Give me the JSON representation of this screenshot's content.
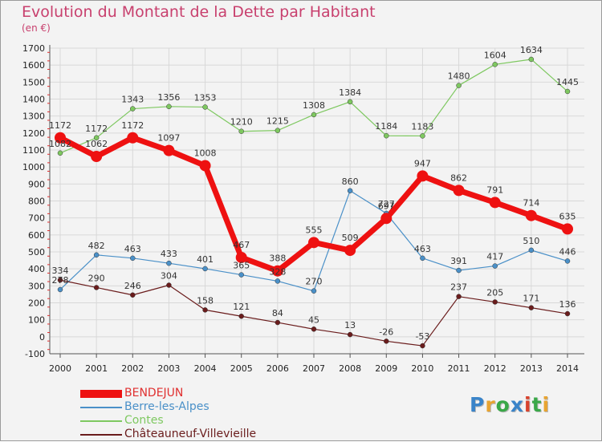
{
  "title": "Evolution du Montant de la Dette par Habitant",
  "subtitle": "(en €)",
  "logo": {
    "text": "Proxiti",
    "letter_colors": [
      "#3a84c9",
      "#e8a431",
      "#3aa848",
      "#3a84c9",
      "#d8432e",
      "#3aa848",
      "#e8a431"
    ]
  },
  "chart_data": {
    "type": "line",
    "title": "Evolution du Montant de la Dette par Habitant",
    "ylabel": "(en €)",
    "ylim": [
      -100,
      1700
    ],
    "ytick_step": 100,
    "grid": true,
    "legend_position": "bottom-left",
    "x": [
      "2000",
      "2001",
      "2002",
      "2003",
      "2004",
      "2005",
      "2006",
      "2007",
      "2008",
      "2009",
      "2010",
      "2011",
      "2012",
      "2013",
      "2014"
    ],
    "series": [
      {
        "name": "BENDEJUN",
        "color": "#ee1111",
        "values": [
          1172,
          1062,
          1172,
          1097,
          1008,
          467,
          388,
          555,
          509,
          697,
          947,
          862,
          791,
          714,
          635
        ]
      },
      {
        "name": "Berre-les-Alpes",
        "color": "#4a90c8",
        "values": [
          278,
          482,
          463,
          433,
          401,
          365,
          328,
          270,
          860,
          727,
          463,
          391,
          417,
          510,
          446
        ]
      },
      {
        "name": "Contes",
        "color": "#7ec860",
        "values": [
          1082,
          1172,
          1343,
          1356,
          1353,
          1210,
          1215,
          1308,
          1384,
          1184,
          1183,
          1480,
          1604,
          1634,
          1445
        ]
      },
      {
        "name": "Châteauneuf-Villevieille",
        "color": "#6a1c1c",
        "values": [
          334,
          290,
          246,
          304,
          158,
          121,
          84,
          45,
          13,
          -26,
          -53,
          237,
          205,
          171,
          136
        ]
      }
    ]
  }
}
